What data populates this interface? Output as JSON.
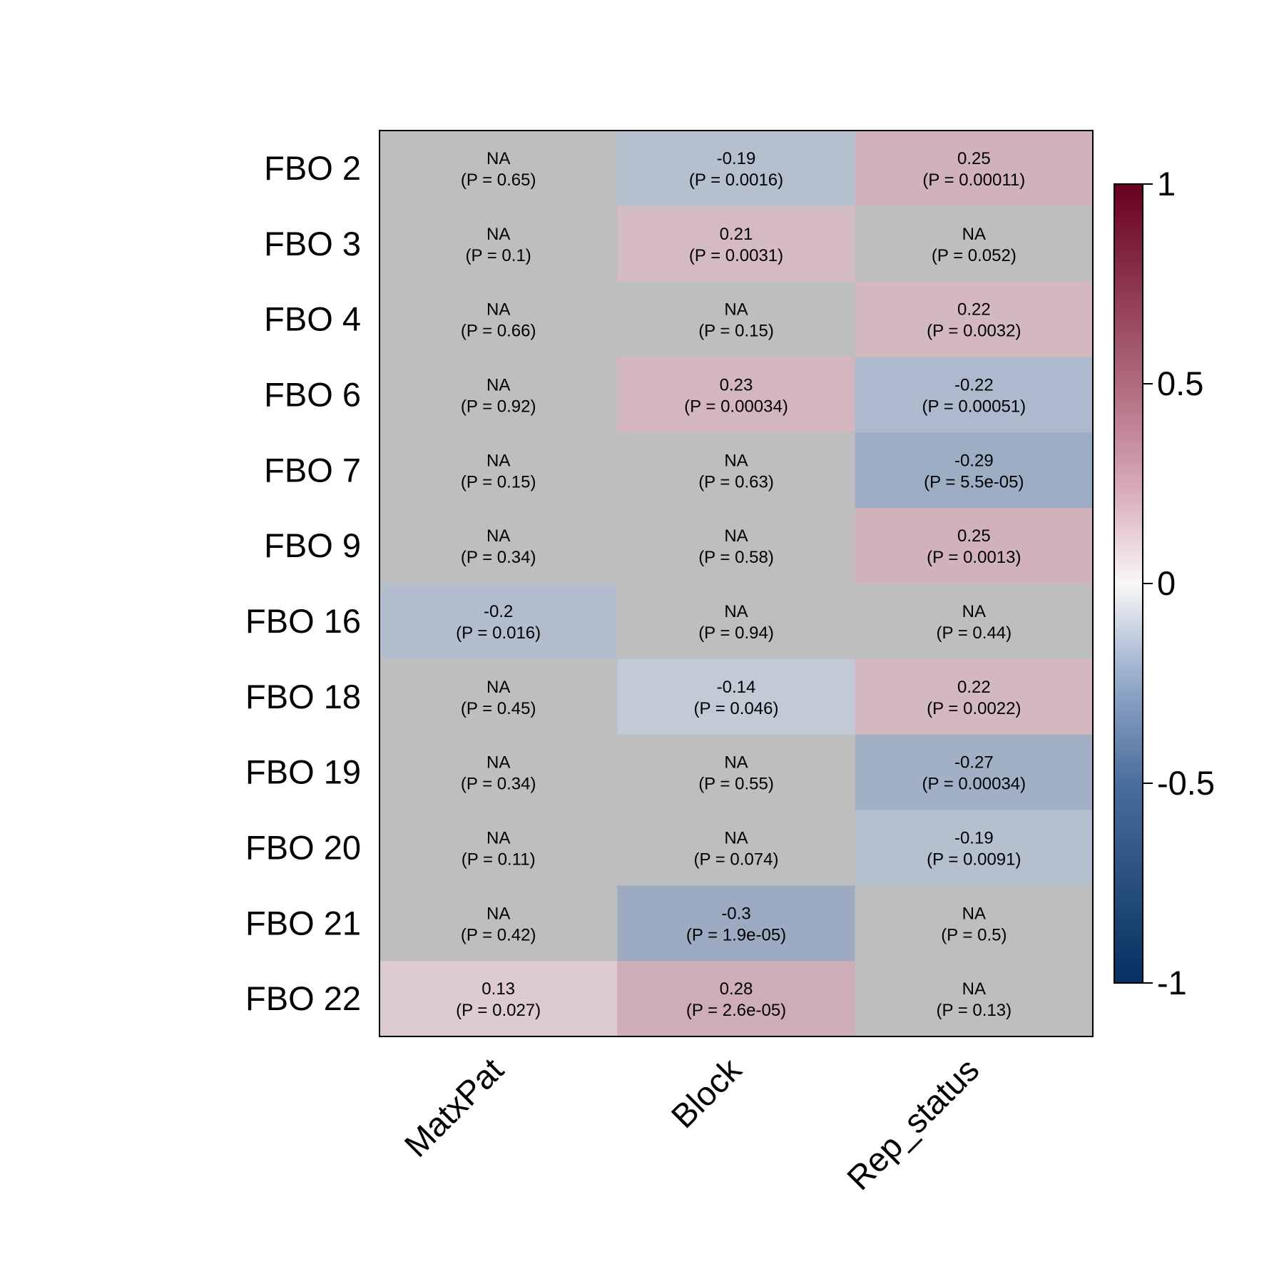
{
  "chart_data": {
    "type": "heatmap",
    "rows": [
      "FBO 2",
      "FBO 3",
      "FBO 4",
      "FBO 6",
      "FBO 7",
      "FBO 9",
      "FBO 16",
      "FBO 18",
      "FBO 19",
      "FBO 20",
      "FBO 21",
      "FBO 22"
    ],
    "columns": [
      "MatxPat",
      "Block",
      "Rep_status"
    ],
    "cells": [
      [
        {
          "value": null,
          "label": "NA",
          "p": "(P = 0.65)"
        },
        {
          "value": -0.19,
          "label": "-0.19",
          "p": "(P = 0.0016)"
        },
        {
          "value": 0.25,
          "label": "0.25",
          "p": "(P = 0.00011)"
        }
      ],
      [
        {
          "value": null,
          "label": "NA",
          "p": "(P = 0.1)"
        },
        {
          "value": 0.21,
          "label": "0.21",
          "p": "(P = 0.0031)"
        },
        {
          "value": null,
          "label": "NA",
          "p": "(P = 0.052)"
        }
      ],
      [
        {
          "value": null,
          "label": "NA",
          "p": "(P = 0.66)"
        },
        {
          "value": null,
          "label": "NA",
          "p": "(P = 0.15)"
        },
        {
          "value": 0.22,
          "label": "0.22",
          "p": "(P = 0.0032)"
        }
      ],
      [
        {
          "value": null,
          "label": "NA",
          "p": "(P = 0.92)"
        },
        {
          "value": 0.23,
          "label": "0.23",
          "p": "(P = 0.00034)"
        },
        {
          "value": -0.22,
          "label": "-0.22",
          "p": "(P = 0.00051)"
        }
      ],
      [
        {
          "value": null,
          "label": "NA",
          "p": "(P = 0.15)"
        },
        {
          "value": null,
          "label": "NA",
          "p": "(P = 0.63)"
        },
        {
          "value": -0.29,
          "label": "-0.29",
          "p": "(P = 5.5e-05)"
        }
      ],
      [
        {
          "value": null,
          "label": "NA",
          "p": "(P = 0.34)"
        },
        {
          "value": null,
          "label": "NA",
          "p": "(P = 0.58)"
        },
        {
          "value": 0.25,
          "label": "0.25",
          "p": "(P = 0.0013)"
        }
      ],
      [
        {
          "value": -0.2,
          "label": "-0.2",
          "p": "(P = 0.016)"
        },
        {
          "value": null,
          "label": "NA",
          "p": "(P = 0.94)"
        },
        {
          "value": null,
          "label": "NA",
          "p": "(P = 0.44)"
        }
      ],
      [
        {
          "value": null,
          "label": "NA",
          "p": "(P = 0.45)"
        },
        {
          "value": -0.14,
          "label": "-0.14",
          "p": "(P = 0.046)"
        },
        {
          "value": 0.22,
          "label": "0.22",
          "p": "(P = 0.0022)"
        }
      ],
      [
        {
          "value": null,
          "label": "NA",
          "p": "(P = 0.34)"
        },
        {
          "value": null,
          "label": "NA",
          "p": "(P = 0.55)"
        },
        {
          "value": -0.27,
          "label": "-0.27",
          "p": "(P = 0.00034)"
        }
      ],
      [
        {
          "value": null,
          "label": "NA",
          "p": "(P = 0.11)"
        },
        {
          "value": null,
          "label": "NA",
          "p": "(P = 0.074)"
        },
        {
          "value": -0.19,
          "label": "-0.19",
          "p": "(P = 0.0091)"
        }
      ],
      [
        {
          "value": null,
          "label": "NA",
          "p": "(P = 0.42)"
        },
        {
          "value": -0.3,
          "label": "-0.3",
          "p": "(P = 1.9e-05)"
        },
        {
          "value": null,
          "label": "NA",
          "p": "(P = 0.5)"
        }
      ],
      [
        {
          "value": 0.13,
          "label": "0.13",
          "p": "(P = 0.027)"
        },
        {
          "value": 0.28,
          "label": "0.28",
          "p": "(P = 2.6e-05)"
        },
        {
          "value": null,
          "label": "NA",
          "p": "(P = 0.13)"
        }
      ]
    ],
    "colorbar": {
      "range": [
        -1,
        1
      ],
      "ticks": [
        {
          "value": 1,
          "label": "1"
        },
        {
          "value": 0.5,
          "label": "0.5"
        },
        {
          "value": 0,
          "label": "0"
        },
        {
          "value": -0.5,
          "label": "-0.5"
        },
        {
          "value": -1,
          "label": "-1"
        }
      ]
    },
    "na_color": "#BEBEBE",
    "colors": {
      "low": "#053061",
      "lowmid": "#92A8C8",
      "mid": "#F7F7F7",
      "highmid": "#D6A6B4",
      "high": "#67001F"
    },
    "legend_position": "right"
  }
}
